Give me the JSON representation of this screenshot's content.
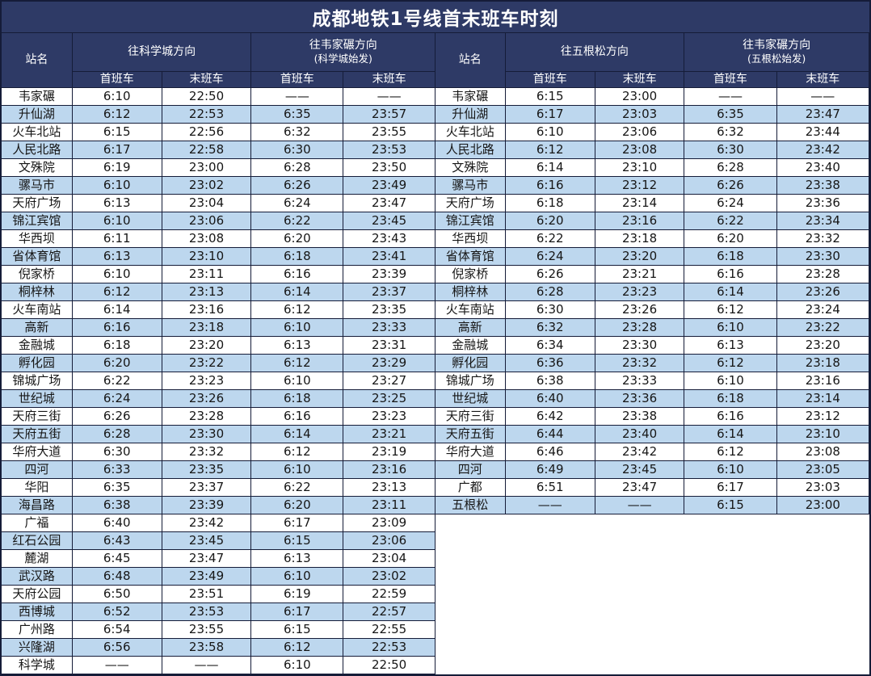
{
  "title": "成都地铁1号线首末班车时刻",
  "colors": {
    "header_bg": "#2e3a66",
    "grid_line": "#151c38",
    "alt_row": "#bdd7ee",
    "row": "#ffffff",
    "header_text": "#ffffff",
    "cell_text": "#161616"
  },
  "left_table": {
    "station_col_header": "站名",
    "dir1_title": "往科学城方向",
    "dir1_subtitle": "",
    "dir2_title": "往韦家碾方向",
    "dir2_subtitle": "(科学城始发)",
    "sub_headers": [
      "首班车",
      "末班车",
      "首班车",
      "末班车"
    ],
    "rows": [
      [
        "韦家碾",
        "6:10",
        "22:50",
        "——",
        "——"
      ],
      [
        "升仙湖",
        "6:12",
        "22:53",
        "6:35",
        "23:57"
      ],
      [
        "火车北站",
        "6:15",
        "22:56",
        "6:32",
        "23:55"
      ],
      [
        "人民北路",
        "6:17",
        "22:58",
        "6:30",
        "23:53"
      ],
      [
        "文殊院",
        "6:19",
        "23:00",
        "6:28",
        "23:50"
      ],
      [
        "骡马市",
        "6:10",
        "23:02",
        "6:26",
        "23:49"
      ],
      [
        "天府广场",
        "6:13",
        "23:04",
        "6:24",
        "23:47"
      ],
      [
        "锦江宾馆",
        "6:10",
        "23:06",
        "6:22",
        "23:45"
      ],
      [
        "华西坝",
        "6:11",
        "23:08",
        "6:20",
        "23:43"
      ],
      [
        "省体育馆",
        "6:13",
        "23:10",
        "6:18",
        "23:41"
      ],
      [
        "倪家桥",
        "6:10",
        "23:11",
        "6:16",
        "23:39"
      ],
      [
        "桐梓林",
        "6:12",
        "23:13",
        "6:14",
        "23:37"
      ],
      [
        "火车南站",
        "6:14",
        "23:16",
        "6:12",
        "23:35"
      ],
      [
        "高新",
        "6:16",
        "23:18",
        "6:10",
        "23:33"
      ],
      [
        "金融城",
        "6:18",
        "23:20",
        "6:13",
        "23:31"
      ],
      [
        "孵化园",
        "6:20",
        "23:22",
        "6:12",
        "23:29"
      ],
      [
        "锦城广场",
        "6:22",
        "23:23",
        "6:10",
        "23:27"
      ],
      [
        "世纪城",
        "6:24",
        "23:26",
        "6:18",
        "23:25"
      ],
      [
        "天府三街",
        "6:26",
        "23:28",
        "6:16",
        "23:23"
      ],
      [
        "天府五街",
        "6:28",
        "23:30",
        "6:14",
        "23:21"
      ],
      [
        "华府大道",
        "6:30",
        "23:32",
        "6:12",
        "23:19"
      ],
      [
        "四河",
        "6:33",
        "23:35",
        "6:10",
        "23:16"
      ],
      [
        "华阳",
        "6:35",
        "23:37",
        "6:22",
        "23:13"
      ],
      [
        "海昌路",
        "6:38",
        "23:39",
        "6:20",
        "23:11"
      ],
      [
        "广福",
        "6:40",
        "23:42",
        "6:17",
        "23:09"
      ],
      [
        "红石公园",
        "6:43",
        "23:45",
        "6:15",
        "23:06"
      ],
      [
        "麓湖",
        "6:45",
        "23:47",
        "6:13",
        "23:04"
      ],
      [
        "武汉路",
        "6:48",
        "23:49",
        "6:10",
        "23:02"
      ],
      [
        "天府公园",
        "6:50",
        "23:51",
        "6:19",
        "22:59"
      ],
      [
        "西博城",
        "6:52",
        "23:53",
        "6:17",
        "22:57"
      ],
      [
        "广州路",
        "6:54",
        "23:55",
        "6:15",
        "22:55"
      ],
      [
        "兴隆湖",
        "6:56",
        "23:58",
        "6:12",
        "22:53"
      ],
      [
        "科学城",
        "——",
        "——",
        "6:10",
        "22:50"
      ]
    ]
  },
  "right_table": {
    "station_col_header": "站名",
    "dir1_title": "往五根松方向",
    "dir1_subtitle": "",
    "dir2_title": "往韦家碾方向",
    "dir2_subtitle": "(五根松始发)",
    "sub_headers": [
      "首班车",
      "末班车",
      "首班车",
      "末班车"
    ],
    "rows": [
      [
        "韦家碾",
        "6:15",
        "23:00",
        "——",
        "——"
      ],
      [
        "升仙湖",
        "6:17",
        "23:03",
        "6:35",
        "23:47"
      ],
      [
        "火车北站",
        "6:10",
        "23:06",
        "6:32",
        "23:44"
      ],
      [
        "人民北路",
        "6:12",
        "23:08",
        "6:30",
        "23:42"
      ],
      [
        "文殊院",
        "6:14",
        "23:10",
        "6:28",
        "23:40"
      ],
      [
        "骡马市",
        "6:16",
        "23:12",
        "6:26",
        "23:38"
      ],
      [
        "天府广场",
        "6:18",
        "23:14",
        "6:24",
        "23:36"
      ],
      [
        "锦江宾馆",
        "6:20",
        "23:16",
        "6:22",
        "23:34"
      ],
      [
        "华西坝",
        "6:22",
        "23:18",
        "6:20",
        "23:32"
      ],
      [
        "省体育馆",
        "6:24",
        "23:20",
        "6:18",
        "23:30"
      ],
      [
        "倪家桥",
        "6:26",
        "23:21",
        "6:16",
        "23:28"
      ],
      [
        "桐梓林",
        "6:28",
        "23:23",
        "6:14",
        "23:26"
      ],
      [
        "火车南站",
        "6:30",
        "23:26",
        "6:12",
        "23:24"
      ],
      [
        "高新",
        "6:32",
        "23:28",
        "6:10",
        "23:22"
      ],
      [
        "金融城",
        "6:34",
        "23:30",
        "6:13",
        "23:20"
      ],
      [
        "孵化园",
        "6:36",
        "23:32",
        "6:12",
        "23:18"
      ],
      [
        "锦城广场",
        "6:38",
        "23:33",
        "6:10",
        "23:16"
      ],
      [
        "世纪城",
        "6:40",
        "23:36",
        "6:18",
        "23:14"
      ],
      [
        "天府三街",
        "6:42",
        "23:38",
        "6:16",
        "23:12"
      ],
      [
        "天府五街",
        "6:44",
        "23:40",
        "6:14",
        "23:10"
      ],
      [
        "华府大道",
        "6:46",
        "23:42",
        "6:12",
        "23:08"
      ],
      [
        "四河",
        "6:49",
        "23:45",
        "6:10",
        "23:05"
      ],
      [
        "广都",
        "6:51",
        "23:47",
        "6:17",
        "23:03"
      ],
      [
        "五根松",
        "——",
        "——",
        "6:15",
        "23:00"
      ]
    ]
  }
}
